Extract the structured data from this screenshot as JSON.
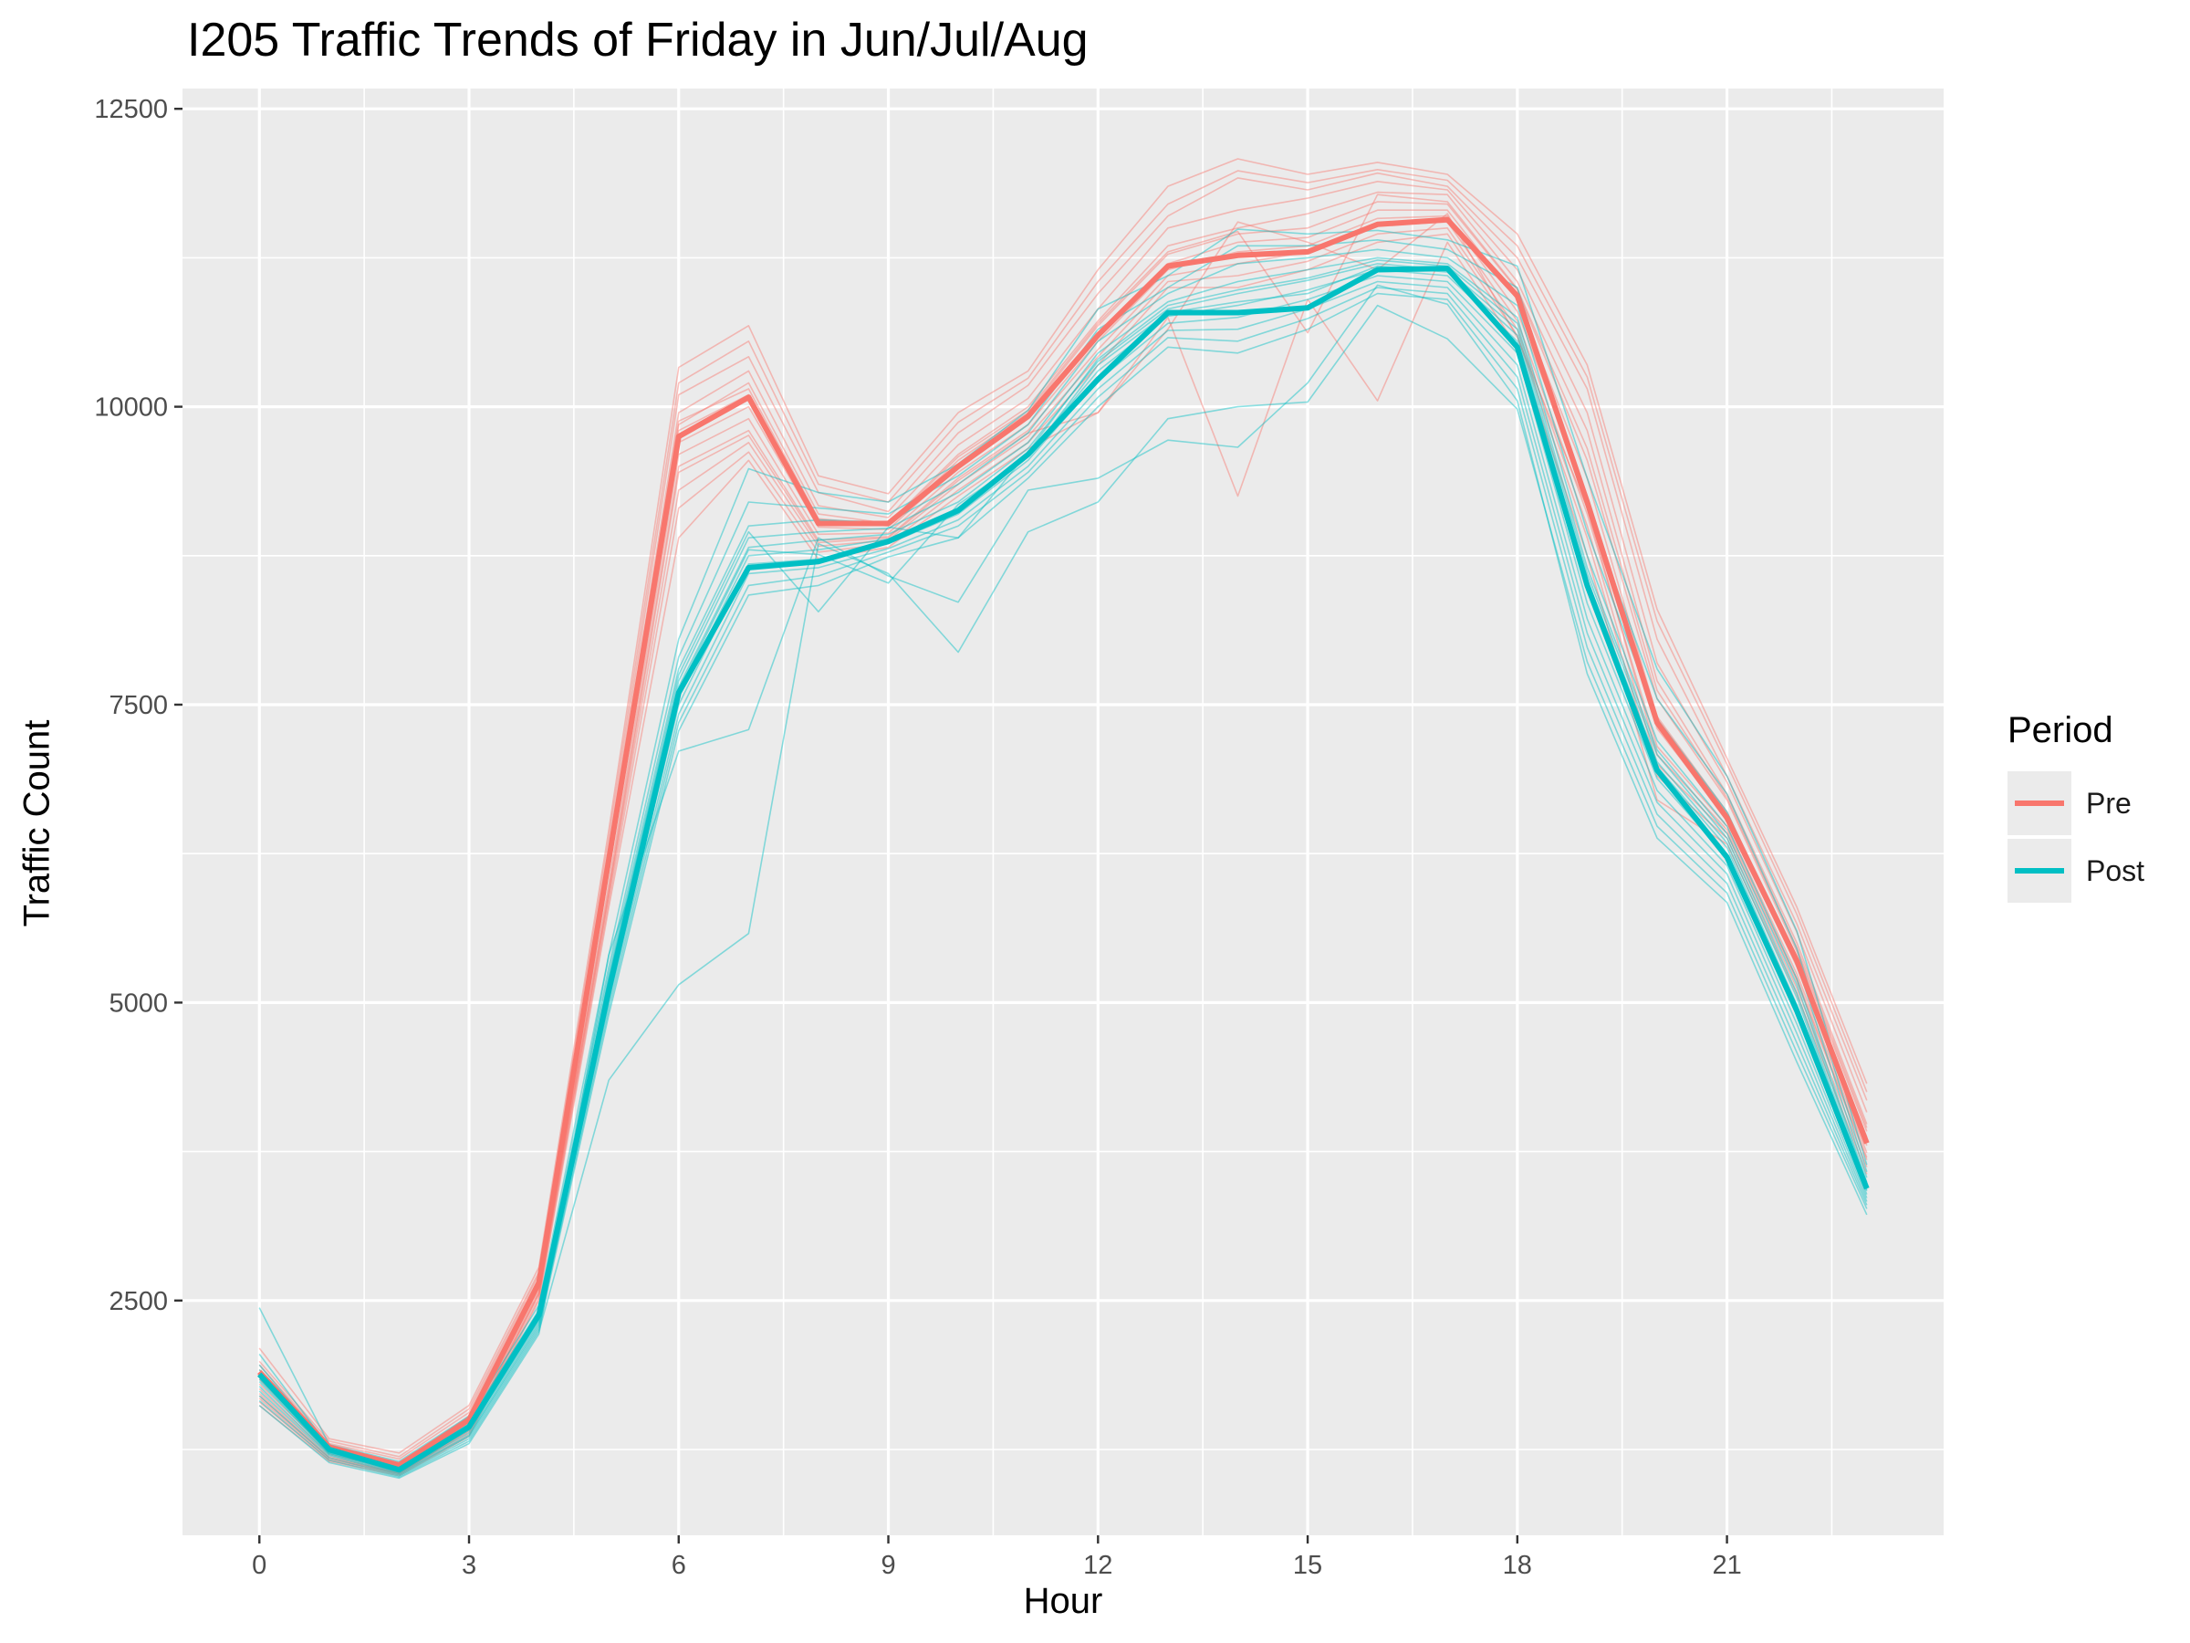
{
  "chart_data": {
    "type": "line",
    "title": "I205 Traffic Trends of Friday in Jun/Jul/Aug",
    "xlabel": "Hour",
    "ylabel": "Traffic Count",
    "xlim": [
      -1.1,
      24.1
    ],
    "ylim": [
      530,
      12670
    ],
    "x_ticks": [
      0,
      3,
      6,
      9,
      12,
      15,
      18,
      21
    ],
    "y_ticks": [
      2500,
      5000,
      7500,
      10000,
      12500
    ],
    "grid": true,
    "legend_title": "Period",
    "legend_position": "right",
    "x": [
      0,
      1,
      2,
      3,
      4,
      5,
      6,
      7,
      8,
      9,
      10,
      11,
      12,
      13,
      14,
      15,
      16,
      17,
      18,
      19,
      20,
      21,
      22,
      23
    ],
    "series": [
      {
        "name": "Pre",
        "color": "#F8766D",
        "values": [
          1900,
          1270,
          1120,
          1500,
          2650,
          6200,
          9750,
          10080,
          9020,
          9020,
          9500,
          9920,
          10600,
          11180,
          11270,
          11300,
          11530,
          11570,
          10930,
          9200,
          7350,
          6550,
          5350,
          3820
        ]
      },
      {
        "name": "Post",
        "color": "#00BFC4",
        "values": [
          1880,
          1250,
          1080,
          1440,
          2380,
          5100,
          7600,
          8650,
          8700,
          8870,
          9130,
          9600,
          10230,
          10790,
          10790,
          10830,
          11150,
          11160,
          10500,
          8500,
          6950,
          6220,
          4930,
          3440
        ]
      }
    ],
    "individual_lines": {
      "Pre": [
        [
          2100,
          1340,
          1220,
          1620,
          2780,
          6450,
          10330,
          10680,
          9420,
          9270,
          9950,
          10300,
          11150,
          11850,
          12080,
          11950,
          12050,
          11950,
          11450,
          10350,
          8300,
          7050,
          5800,
          4320
        ],
        [
          1960,
          1300,
          1170,
          1560,
          2720,
          6300,
          10100,
          10420,
          9280,
          9120,
          9780,
          10180,
          10950,
          11600,
          11920,
          11820,
          11960,
          11850,
          11250,
          10150,
          8050,
          6900,
          5660,
          4180
        ],
        [
          1920,
          1280,
          1130,
          1530,
          2690,
          6250,
          9950,
          10300,
          9170,
          9070,
          9680,
          10070,
          10820,
          11500,
          11650,
          11750,
          11890,
          11820,
          11150,
          9950,
          7850,
          6850,
          5590,
          4080
        ],
        [
          1880,
          1260,
          1100,
          1500,
          2660,
          6200,
          9850,
          10200,
          9100,
          9020,
          9600,
          10000,
          10720,
          11350,
          11500,
          11620,
          11800,
          11780,
          11050,
          9800,
          7700,
          6750,
          5500,
          3980
        ],
        [
          1840,
          1250,
          1090,
          1480,
          2630,
          6150,
          9800,
          10100,
          9050,
          9000,
          9550,
          9950,
          10680,
          11280,
          11450,
          11500,
          11720,
          11700,
          10980,
          9550,
          7550,
          6700,
          5430,
          3920
        ],
        [
          1800,
          1230,
          1080,
          1460,
          2610,
          6100,
          9700,
          10000,
          8990,
          8970,
          9500,
          9900,
          10600,
          11200,
          11380,
          11420,
          11650,
          11650,
          10900,
          9400,
          7400,
          6600,
          5360,
          3870
        ],
        [
          1760,
          1210,
          1070,
          1440,
          2590,
          6000,
          9600,
          9900,
          8930,
          8940,
          9450,
          9850,
          10550,
          11150,
          11300,
          11350,
          11580,
          11600,
          10800,
          9250,
          7300,
          6550,
          5300,
          3800
        ],
        [
          1720,
          1190,
          1060,
          1420,
          2570,
          5950,
          9500,
          9800,
          8880,
          8910,
          9400,
          9800,
          10480,
          11100,
          11200,
          11300,
          11520,
          11550,
          10720,
          9100,
          7150,
          6480,
          5240,
          3740
        ],
        [
          1680,
          1170,
          1050,
          1400,
          2550,
          5900,
          9300,
          9700,
          8830,
          8880,
          9350,
          9750,
          10420,
          11050,
          11100,
          11220,
          11450,
          11500,
          10650,
          9000,
          7000,
          6420,
          5180,
          3680
        ],
        [
          1650,
          1160,
          1040,
          1380,
          2520,
          5850,
          9150,
          9620,
          8780,
          8850,
          9300,
          9700,
          10350,
          11000,
          11000,
          11150,
          11380,
          11450,
          10600,
          8900,
          6900,
          6380,
          5120,
          3620
        ],
        [
          1620,
          1150,
          1030,
          1360,
          2500,
          5800,
          8900,
          9550,
          8720,
          8820,
          9250,
          9650,
          9950,
          10750,
          9250,
          10900,
          10050,
          11380,
          10500,
          8750,
          6700,
          6330,
          5070,
          3560
        ],
        [
          1990,
          1320,
          1190,
          1590,
          2740,
          6380,
          10200,
          10550,
          9350,
          9200,
          9870,
          10240,
          11050,
          11700,
          11980,
          11880,
          11990,
          11900,
          11350,
          10250,
          8200,
          7000,
          5740,
          4250
        ],
        [
          1700,
          1180,
          1050,
          1410,
          2560,
          5920,
          9450,
          9760,
          8860,
          8900,
          9380,
          9780,
          9950,
          10650,
          11550,
          11380,
          11150,
          11620,
          10580,
          9150,
          7080,
          6450,
          5200,
          3700
        ],
        [
          1860,
          1240,
          1100,
          1490,
          2640,
          6180,
          9880,
          10150,
          9060,
          9010,
          9580,
          9970,
          10700,
          11300,
          11470,
          10620,
          11780,
          11720,
          10990,
          9650,
          7620,
          6720,
          5460,
          3950
        ]
      ],
      "Post": [
        [
          2440,
          1290,
          1150,
          1530,
          2460,
          5400,
          8050,
          9480,
          9280,
          9200,
          9520,
          9970,
          10820,
          11100,
          11490,
          11450,
          11480,
          11400,
          11180,
          9400,
          7800,
          6900,
          5600,
          3640
        ],
        [
          2050,
          1270,
          1120,
          1490,
          2420,
          5300,
          7900,
          9200,
          9150,
          9100,
          9420,
          9850,
          10650,
          11000,
          11350,
          11350,
          11400,
          11320,
          11000,
          9150,
          7550,
          6750,
          5450,
          3580
        ],
        [
          1960,
          1260,
          1100,
          1470,
          2400,
          5250,
          7800,
          9000,
          9050,
          9030,
          9350,
          9780,
          10550,
          10950,
          11200,
          11250,
          11320,
          11250,
          10850,
          8950,
          7380,
          6600,
          5330,
          3530
        ],
        [
          1920,
          1250,
          1090,
          1450,
          2380,
          5200,
          7700,
          8900,
          8950,
          8980,
          9280,
          9700,
          10450,
          10880,
          11050,
          11150,
          11250,
          11200,
          10750,
          8750,
          7200,
          6480,
          5200,
          3490
        ],
        [
          1900,
          1240,
          1080,
          1430,
          2360,
          5150,
          7650,
          8820,
          8880,
          8930,
          9200,
          9650,
          10380,
          10820,
          10950,
          11060,
          11200,
          11150,
          10650,
          8600,
          7080,
          6380,
          5080,
          3450
        ],
        [
          1860,
          1230,
          1070,
          1410,
          2340,
          5100,
          7580,
          8750,
          8800,
          8890,
          9150,
          9600,
          10300,
          10760,
          10850,
          10980,
          11150,
          11100,
          10550,
          8480,
          6980,
          6300,
          4980,
          3420
        ],
        [
          1820,
          1220,
          1060,
          1390,
          2320,
          5050,
          7500,
          8680,
          8720,
          8850,
          9100,
          9550,
          10220,
          10700,
          10750,
          10900,
          11100,
          11050,
          10450,
          8350,
          6880,
          6220,
          4900,
          3390
        ],
        [
          1780,
          1210,
          1050,
          1370,
          2300,
          5000,
          7420,
          8600,
          8650,
          8810,
          9050,
          9500,
          10150,
          10640,
          10650,
          10820,
          11050,
          11000,
          10350,
          8220,
          6780,
          6150,
          4820,
          3360
        ],
        [
          1740,
          1200,
          1040,
          1360,
          2280,
          4950,
          7350,
          8500,
          8580,
          8780,
          9000,
          9450,
          10080,
          10580,
          10550,
          10740,
          11000,
          10950,
          10250,
          8100,
          6680,
          6080,
          4740,
          3330
        ],
        [
          1700,
          1180,
          1030,
          1340,
          2260,
          4900,
          7280,
          8420,
          8500,
          8740,
          8900,
          9400,
          10000,
          10500,
          10450,
          10650,
          10950,
          10900,
          10150,
          7980,
          6580,
          6000,
          4660,
          3300
        ],
        [
          1660,
          1160,
          1020,
          1320,
          2240,
          4350,
          5150,
          5580,
          8850,
          8600,
          7940,
          8950,
          9200,
          9900,
          10000,
          10040,
          10850,
          10570,
          9980,
          7860,
          6480,
          5920,
          4580,
          3270
        ],
        [
          1620,
          1140,
          1010,
          1300,
          2220,
          5400,
          7110,
          7290,
          8900,
          8580,
          8360,
          9300,
          9400,
          9720,
          9660,
          10200,
          11020,
          10860,
          10050,
          7760,
          6380,
          5840,
          4500,
          3220
        ],
        [
          1880,
          1230,
          1080,
          1440,
          2380,
          5200,
          7750,
          8950,
          8280,
          8990,
          8900,
          9620,
          10400,
          10850,
          10980,
          11080,
          11230,
          11180,
          10700,
          8650,
          7120,
          6420,
          5150,
          3470
        ],
        [
          1840,
          1220,
          1070,
          1420,
          2350,
          5120,
          7620,
          8800,
          8760,
          8520,
          9180,
          9580,
          10350,
          10790,
          10880,
          10950,
          11180,
          11130,
          10600,
          8550,
          7020,
          6340,
          5040,
          3430
        ]
      ]
    }
  }
}
